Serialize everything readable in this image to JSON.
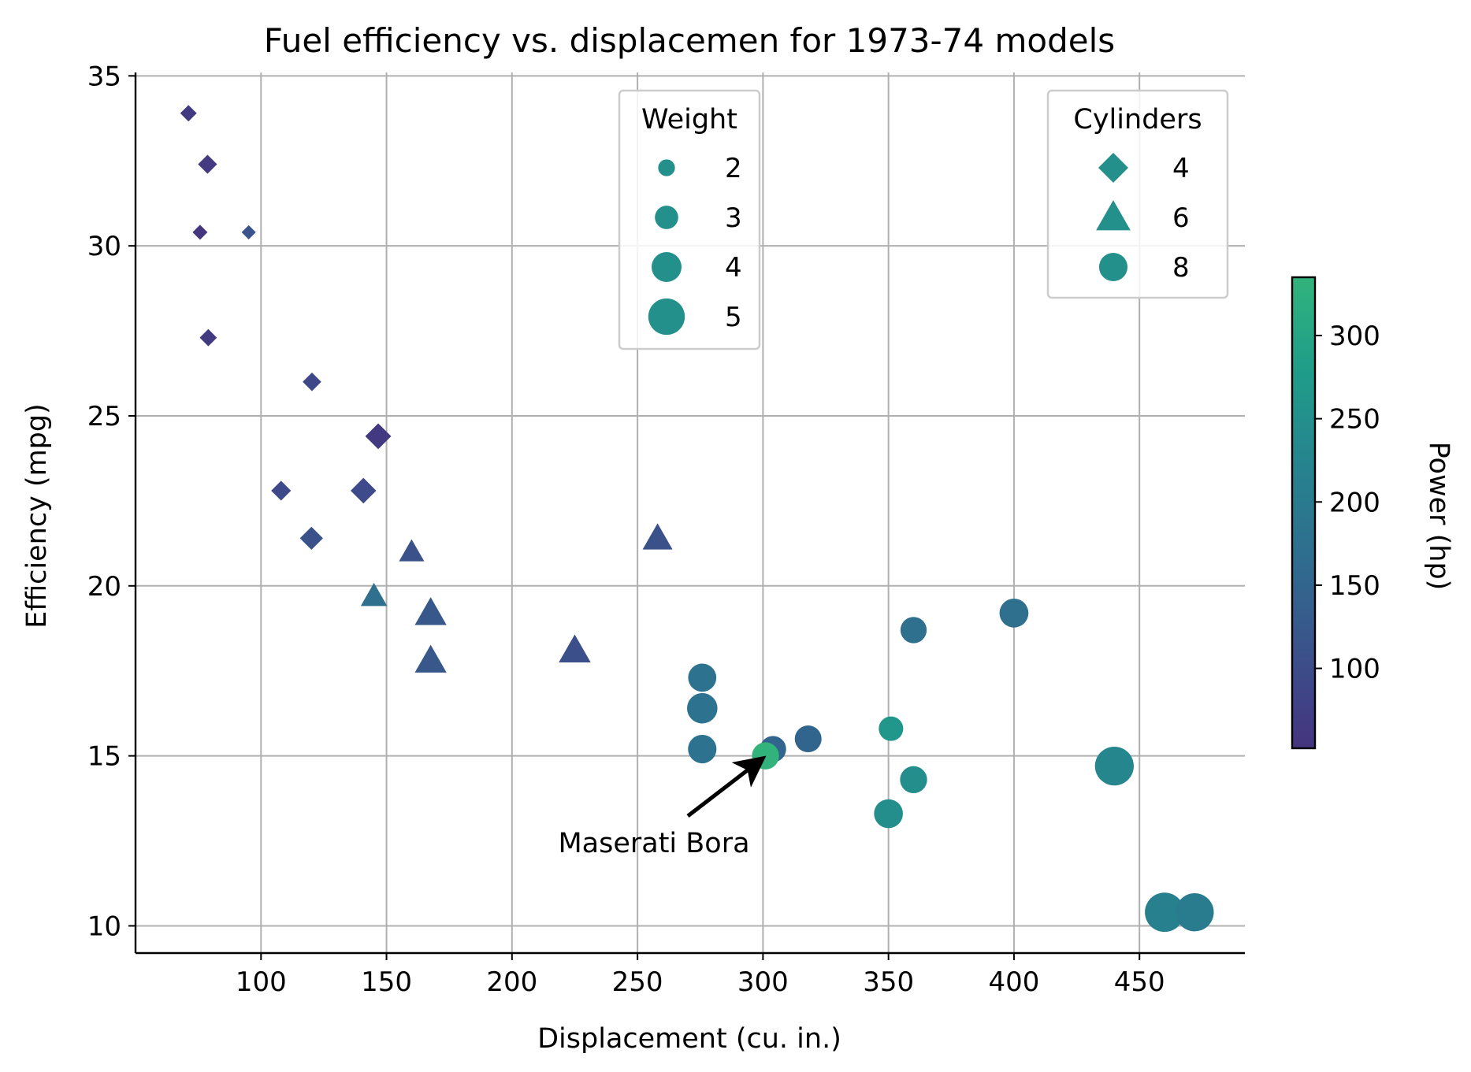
{
  "chart_data": {
    "type": "scatter",
    "title": "Fuel efficiency vs. displacemen for 1973-74 models",
    "xlabel": "Displacement (cu. in.)",
    "ylabel": "Efficiency (mpg)",
    "xlim": [
      50,
      492
    ],
    "ylim": [
      9.2,
      35.1
    ],
    "xticks": [
      100,
      150,
      200,
      250,
      300,
      350,
      400,
      450
    ],
    "yticks": [
      10,
      15,
      20,
      25,
      30,
      35
    ],
    "grid": true,
    "color_encoding": {
      "variable": "Power (hp)",
      "colormap": "viridis",
      "range": [
        52,
        335
      ],
      "ticks": [
        100,
        150,
        200,
        250,
        300
      ]
    },
    "size_legend": {
      "title": "Weight",
      "placement": "upper-center",
      "entries": [
        {
          "label": "2",
          "weight": 2
        },
        {
          "label": "3",
          "weight": 3
        },
        {
          "label": "4",
          "weight": 4
        },
        {
          "label": "5",
          "weight": 5
        }
      ]
    },
    "shape_legend": {
      "title": "Cylinders",
      "placement": "upper-right",
      "entries": [
        {
          "label": "4",
          "cylinders": 4,
          "marker": "diamond"
        },
        {
          "label": "6",
          "cylinders": 6,
          "marker": "triangle"
        },
        {
          "label": "8",
          "cylinders": 8,
          "marker": "circle"
        }
      ]
    },
    "points": [
      {
        "x": 71.1,
        "y": 33.9,
        "cyl": 4,
        "wt": 1.835,
        "hp": 65
      },
      {
        "x": 78.7,
        "y": 32.4,
        "cyl": 4,
        "wt": 2.2,
        "hp": 66
      },
      {
        "x": 75.7,
        "y": 30.4,
        "cyl": 4,
        "wt": 1.615,
        "hp": 52
      },
      {
        "x": 95.1,
        "y": 30.4,
        "cyl": 4,
        "wt": 1.513,
        "hp": 113
      },
      {
        "x": 79.0,
        "y": 27.3,
        "cyl": 4,
        "wt": 1.935,
        "hp": 66
      },
      {
        "x": 120.3,
        "y": 26.0,
        "cyl": 4,
        "wt": 2.14,
        "hp": 91
      },
      {
        "x": 146.7,
        "y": 24.4,
        "cyl": 4,
        "wt": 3.19,
        "hp": 62
      },
      {
        "x": 108.0,
        "y": 22.8,
        "cyl": 4,
        "wt": 2.32,
        "hp": 93
      },
      {
        "x": 140.8,
        "y": 22.8,
        "cyl": 4,
        "wt": 3.15,
        "hp": 95
      },
      {
        "x": 120.1,
        "y": 21.4,
        "cyl": 4,
        "wt": 2.78,
        "hp": 109
      },
      {
        "x": 160.0,
        "y": 21.0,
        "cyl": 6,
        "wt": 2.62,
        "hp": 110
      },
      {
        "x": 258.0,
        "y": 21.4,
        "cyl": 6,
        "wt": 3.215,
        "hp": 110
      },
      {
        "x": 145.0,
        "y": 19.7,
        "cyl": 6,
        "wt": 2.77,
        "hp": 175
      },
      {
        "x": 167.6,
        "y": 19.2,
        "cyl": 6,
        "wt": 3.44,
        "hp": 123
      },
      {
        "x": 167.6,
        "y": 17.8,
        "cyl": 6,
        "wt": 3.44,
        "hp": 123
      },
      {
        "x": 225.0,
        "y": 18.1,
        "cyl": 6,
        "wt": 3.46,
        "hp": 105
      },
      {
        "x": 360.0,
        "y": 18.7,
        "cyl": 8,
        "wt": 3.44,
        "hp": 175
      },
      {
        "x": 400.0,
        "y": 19.2,
        "cyl": 8,
        "wt": 3.845,
        "hp": 175
      },
      {
        "x": 275.8,
        "y": 17.3,
        "cyl": 8,
        "wt": 3.73,
        "hp": 180
      },
      {
        "x": 275.8,
        "y": 16.4,
        "cyl": 8,
        "wt": 4.07,
        "hp": 180
      },
      {
        "x": 275.8,
        "y": 15.2,
        "cyl": 8,
        "wt": 3.78,
        "hp": 180
      },
      {
        "x": 304.0,
        "y": 15.2,
        "cyl": 8,
        "wt": 3.435,
        "hp": 150
      },
      {
        "x": 318.0,
        "y": 15.5,
        "cyl": 8,
        "wt": 3.52,
        "hp": 150
      },
      {
        "x": 351.0,
        "y": 15.8,
        "cyl": 8,
        "wt": 3.17,
        "hp": 264
      },
      {
        "x": 301.0,
        "y": 15.0,
        "cyl": 8,
        "wt": 3.57,
        "hp": 335
      },
      {
        "x": 360.0,
        "y": 14.3,
        "cyl": 8,
        "wt": 3.57,
        "hp": 245
      },
      {
        "x": 350.0,
        "y": 13.3,
        "cyl": 8,
        "wt": 3.84,
        "hp": 245
      },
      {
        "x": 440.0,
        "y": 14.7,
        "cyl": 8,
        "wt": 5.345,
        "hp": 230
      },
      {
        "x": 460.0,
        "y": 10.4,
        "cyl": 8,
        "wt": 5.424,
        "hp": 215
      },
      {
        "x": 472.0,
        "y": 10.4,
        "cyl": 8,
        "wt": 5.25,
        "hp": 205
      }
    ],
    "annotations": [
      {
        "text": "Maserati Bora",
        "x": 301.0,
        "y": 15.0
      }
    ]
  }
}
